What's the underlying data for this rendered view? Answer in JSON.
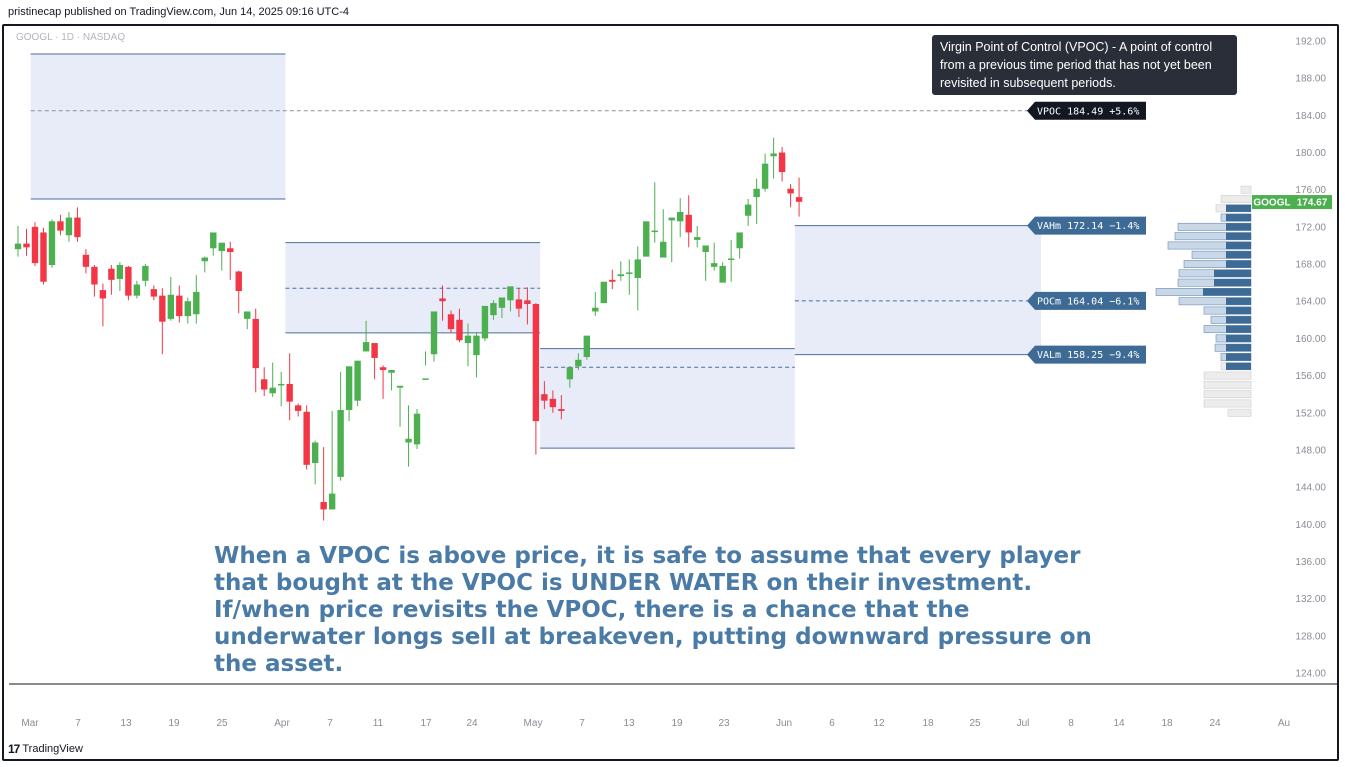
{
  "header": {
    "publisher_text": "pristinecap published on TradingView.com, Jun 14, 2025 09:16 UTC-4",
    "symbol_text": "GOOGL · 1D · NASDAQ"
  },
  "footer": {
    "logo_mark": "17",
    "logo_text": "TradingView"
  },
  "annotation": {
    "note": "Virgin Point of Control (VPOC) - A point of control from a previous time period that has not yet been revisited in subsequent periods.",
    "commentary": "When a VPOC is above price, it is safe to assume that every player that bought at the VPOC is UNDER WATER on their investment. If/when price revisits the VPOC, there is a chance that the underwater longs sell at breakeven, putting downward pressure on the asset."
  },
  "colors": {
    "up": "#4caf50",
    "down": "#f23645",
    "profile_box": "#e8ecf9",
    "profile_line": "#4a6da0",
    "label_bg": "#3d6b96",
    "price_label": "#4caf50"
  },
  "chart_data": {
    "type": "candlestick",
    "symbol": "GOOGL",
    "interval": "1D",
    "exchange": "NASDAQ",
    "last_price": 174.67,
    "y_axis": {
      "min": 124,
      "max": 192,
      "ticks": [
        "192.00",
        "188.00",
        "184.00",
        "180.00",
        "176.00",
        "172.00",
        "168.00",
        "164.00",
        "160.00",
        "156.00",
        "152.00",
        "148.00",
        "144.00",
        "140.00",
        "136.00",
        "132.00",
        "128.00",
        "124.00"
      ]
    },
    "x_axis": {
      "labels": [
        "Mar",
        "7",
        "13",
        "19",
        "25",
        "Apr",
        "7",
        "11",
        "17",
        "24",
        "May",
        "7",
        "13",
        "19",
        "23",
        "Jun",
        "6",
        "12",
        "18",
        "25",
        "Jul",
        "8",
        "14",
        "18",
        "24",
        "Au"
      ]
    },
    "candles": [
      [
        169.6,
        172.1,
        170.2,
        168.8
      ],
      [
        170.2,
        171.8,
        169.8,
        168.9
      ],
      [
        172.0,
        172.5,
        168.1,
        167.8
      ],
      [
        171.4,
        171.9,
        166.1,
        165.8
      ],
      [
        167.9,
        172.8,
        172.6,
        167.6
      ],
      [
        172.6,
        173.3,
        171.6,
        171.1
      ],
      [
        171.1,
        173.6,
        173.0,
        170.4
      ],
      [
        173.0,
        174.1,
        170.9,
        170.4
      ],
      [
        169.0,
        169.6,
        167.7,
        167.0
      ],
      [
        167.7,
        167.9,
        165.8,
        164.5
      ],
      [
        165.2,
        165.9,
        164.3,
        161.3
      ],
      [
        167.5,
        167.9,
        166.3,
        164.7
      ],
      [
        166.4,
        168.2,
        167.9,
        165.1
      ],
      [
        167.7,
        167.8,
        164.6,
        164.1
      ],
      [
        164.6,
        166.2,
        165.8,
        164.3
      ],
      [
        166.2,
        168.0,
        167.8,
        165.6
      ],
      [
        165.3,
        165.7,
        164.5,
        164.1
      ],
      [
        164.6,
        165.4,
        161.8,
        158.3
      ],
      [
        162.1,
        166.6,
        164.7,
        161.9
      ],
      [
        164.6,
        165.7,
        162.4,
        161.7
      ],
      [
        162.4,
        164.4,
        164.0,
        161.6
      ],
      [
        162.6,
        166.8,
        165.0,
        161.6
      ],
      [
        168.3,
        168.8,
        168.7,
        167.1
      ],
      [
        169.7,
        170.6,
        171.4,
        168.9
      ],
      [
        169.4,
        170.0,
        170.3,
        167.3
      ],
      [
        169.7,
        170.4,
        169.3,
        166.3
      ],
      [
        167.2,
        167.3,
        165.1,
        162.7
      ],
      [
        162.1,
        162.3,
        162.9,
        161.0
      ],
      [
        162.1,
        163.2,
        156.8,
        154.2
      ],
      [
        155.6,
        156.9,
        154.5,
        153.8
      ],
      [
        154.1,
        157.4,
        154.7,
        153.7
      ],
      [
        155.1,
        156.4,
        155.1,
        152.7
      ],
      [
        155.1,
        158.4,
        153.2,
        151.2
      ],
      [
        152.8,
        153.0,
        152.2,
        151.6
      ],
      [
        152.1,
        152.8,
        146.4,
        145.9
      ],
      [
        146.6,
        149.0,
        148.8,
        144.3
      ],
      [
        142.4,
        148.3,
        141.6,
        140.4
      ],
      [
        141.6,
        152.2,
        143.3,
        142.3
      ],
      [
        145.1,
        156.4,
        152.3,
        144.7
      ],
      [
        152.3,
        156.7,
        157.0,
        151.1
      ],
      [
        153.3,
        157.6,
        157.6,
        152.7
      ],
      [
        158.6,
        161.9,
        159.6,
        158.6
      ],
      [
        159.5,
        159.1,
        157.9,
        155.6
      ],
      [
        156.9,
        157.1,
        156.6,
        153.5
      ],
      [
        156.3,
        156.3,
        156.6,
        154.4
      ],
      [
        154.7,
        154.9,
        154.9,
        150.5
      ],
      [
        148.8,
        152.8,
        149.2,
        146.2
      ],
      [
        148.6,
        152.4,
        151.9,
        148.1
      ],
      [
        155.7,
        158.6,
        155.7,
        157.1
      ],
      [
        158.3,
        159.9,
        162.9,
        157.5
      ],
      [
        164.3,
        165.7,
        164.0,
        161.9
      ],
      [
        162.6,
        163.0,
        161.0,
        160.6
      ],
      [
        162.0,
        163.2,
        159.8,
        159.6
      ],
      [
        159.5,
        161.6,
        160.3,
        157.0
      ],
      [
        158.2,
        160.7,
        160.3,
        155.8
      ],
      [
        160.0,
        162.9,
        163.5,
        159.7
      ],
      [
        162.5,
        164.1,
        163.8,
        162.0
      ],
      [
        163.3,
        164.1,
        164.4,
        162.2
      ],
      [
        164.1,
        165.4,
        165.6,
        162.9
      ],
      [
        164.2,
        165.4,
        163.2,
        162.3
      ],
      [
        164.1,
        165.5,
        163.7,
        161.5
      ],
      [
        163.7,
        163.8,
        151.1,
        147.5
      ],
      [
        154.0,
        155.4,
        153.3,
        152.4
      ],
      [
        153.5,
        154.4,
        152.6,
        152.0
      ],
      [
        152.4,
        153.9,
        152.2,
        151.3
      ],
      [
        155.6,
        157.0,
        156.9,
        154.7
      ],
      [
        157.0,
        158.4,
        157.7,
        156.6
      ],
      [
        158.0,
        158.9,
        160.3,
        157.7
      ],
      [
        162.9,
        165.0,
        163.3,
        162.4
      ],
      [
        163.8,
        166.0,
        166.1,
        165.9
      ],
      [
        166.3,
        167.4,
        166.1,
        165.3
      ],
      [
        166.7,
        168.3,
        166.9,
        166.2
      ],
      [
        167.1,
        168.5,
        167.1,
        164.7
      ],
      [
        166.5,
        169.9,
        168.5,
        163.0
      ],
      [
        168.8,
        170.6,
        172.6,
        169.8
      ],
      [
        171.5,
        176.8,
        171.6,
        170.3
      ],
      [
        168.7,
        173.9,
        170.4,
        168.8
      ],
      [
        172.7,
        173.0,
        173.0,
        168.2
      ],
      [
        172.6,
        175.1,
        173.6,
        170.9
      ],
      [
        173.3,
        175.4,
        171.4,
        169.8
      ],
      [
        170.6,
        172.1,
        170.9,
        169.8
      ],
      [
        169.3,
        169.9,
        170.0,
        166.2
      ],
      [
        167.7,
        170.3,
        168.1,
        167.3
      ],
      [
        166.0,
        168.2,
        167.8,
        167.3
      ],
      [
        168.5,
        170.6,
        168.6,
        166.1
      ],
      [
        169.7,
        171.2,
        171.4,
        168.6
      ],
      [
        173.2,
        175.0,
        174.4,
        172.1
      ],
      [
        175.2,
        177.2,
        176.1,
        172.3
      ],
      [
        176.1,
        179.9,
        178.8,
        175.8
      ],
      [
        179.6,
        181.6,
        179.9,
        177.2
      ],
      [
        180.0,
        180.6,
        177.9,
        176.9
      ],
      [
        176.1,
        176.6,
        175.6,
        174.1
      ],
      [
        175.2,
        177.3,
        174.7,
        173.1
      ]
    ],
    "volume_profiles": [
      {
        "period": "Mar",
        "vah": 190.6,
        "poc": 184.49,
        "val": 175.0,
        "top": 190.6,
        "bottom": 175.0,
        "virgin": true
      },
      {
        "period": "Apr",
        "vah": 170.3,
        "poc": 165.4,
        "val": 160.6,
        "top": 170.3,
        "bottom": 160.6
      },
      {
        "period": "May",
        "vah": 158.9,
        "poc": 156.9,
        "val": 148.2,
        "top": 158.9,
        "bottom": 148.2
      },
      {
        "period": "Jun",
        "vah": 172.14,
        "poc": 164.04,
        "val": 158.25,
        "top": 172.14,
        "bottom": 158.25
      }
    ],
    "level_labels": [
      {
        "id": "vpoc",
        "text": "VPOC 184.49 +5.6%",
        "price": 184.49
      },
      {
        "id": "vahm",
        "text": "VAHm 172.14 −1.4%",
        "price": 172.14
      },
      {
        "id": "pocm",
        "text": "POCm 164.04 −6.1%",
        "price": 164.04
      },
      {
        "id": "valm",
        "text": "VALm 158.25 −9.4%",
        "price": 158.25
      }
    ],
    "volume_by_price": {
      "prices": [
        176,
        175,
        174,
        173,
        172,
        171,
        170,
        169,
        168,
        167,
        166,
        165,
        164,
        163,
        162,
        161,
        160,
        159,
        158,
        157,
        156,
        155,
        154,
        153,
        152
      ],
      "total": [
        10,
        30,
        35,
        30,
        73,
        76,
        83,
        59,
        67,
        72,
        73,
        95,
        72,
        47,
        40,
        47,
        35,
        36,
        30,
        30,
        47,
        47,
        47,
        47,
        23
      ],
      "buy": [
        0,
        0,
        25,
        25,
        25,
        25,
        25,
        25,
        25,
        37,
        37,
        48,
        25,
        25,
        25,
        25,
        25,
        25,
        25,
        25,
        0,
        0,
        0,
        0,
        0
      ]
    },
    "price_tag": {
      "symbol": "GOOGL",
      "value": "174.67"
    }
  }
}
